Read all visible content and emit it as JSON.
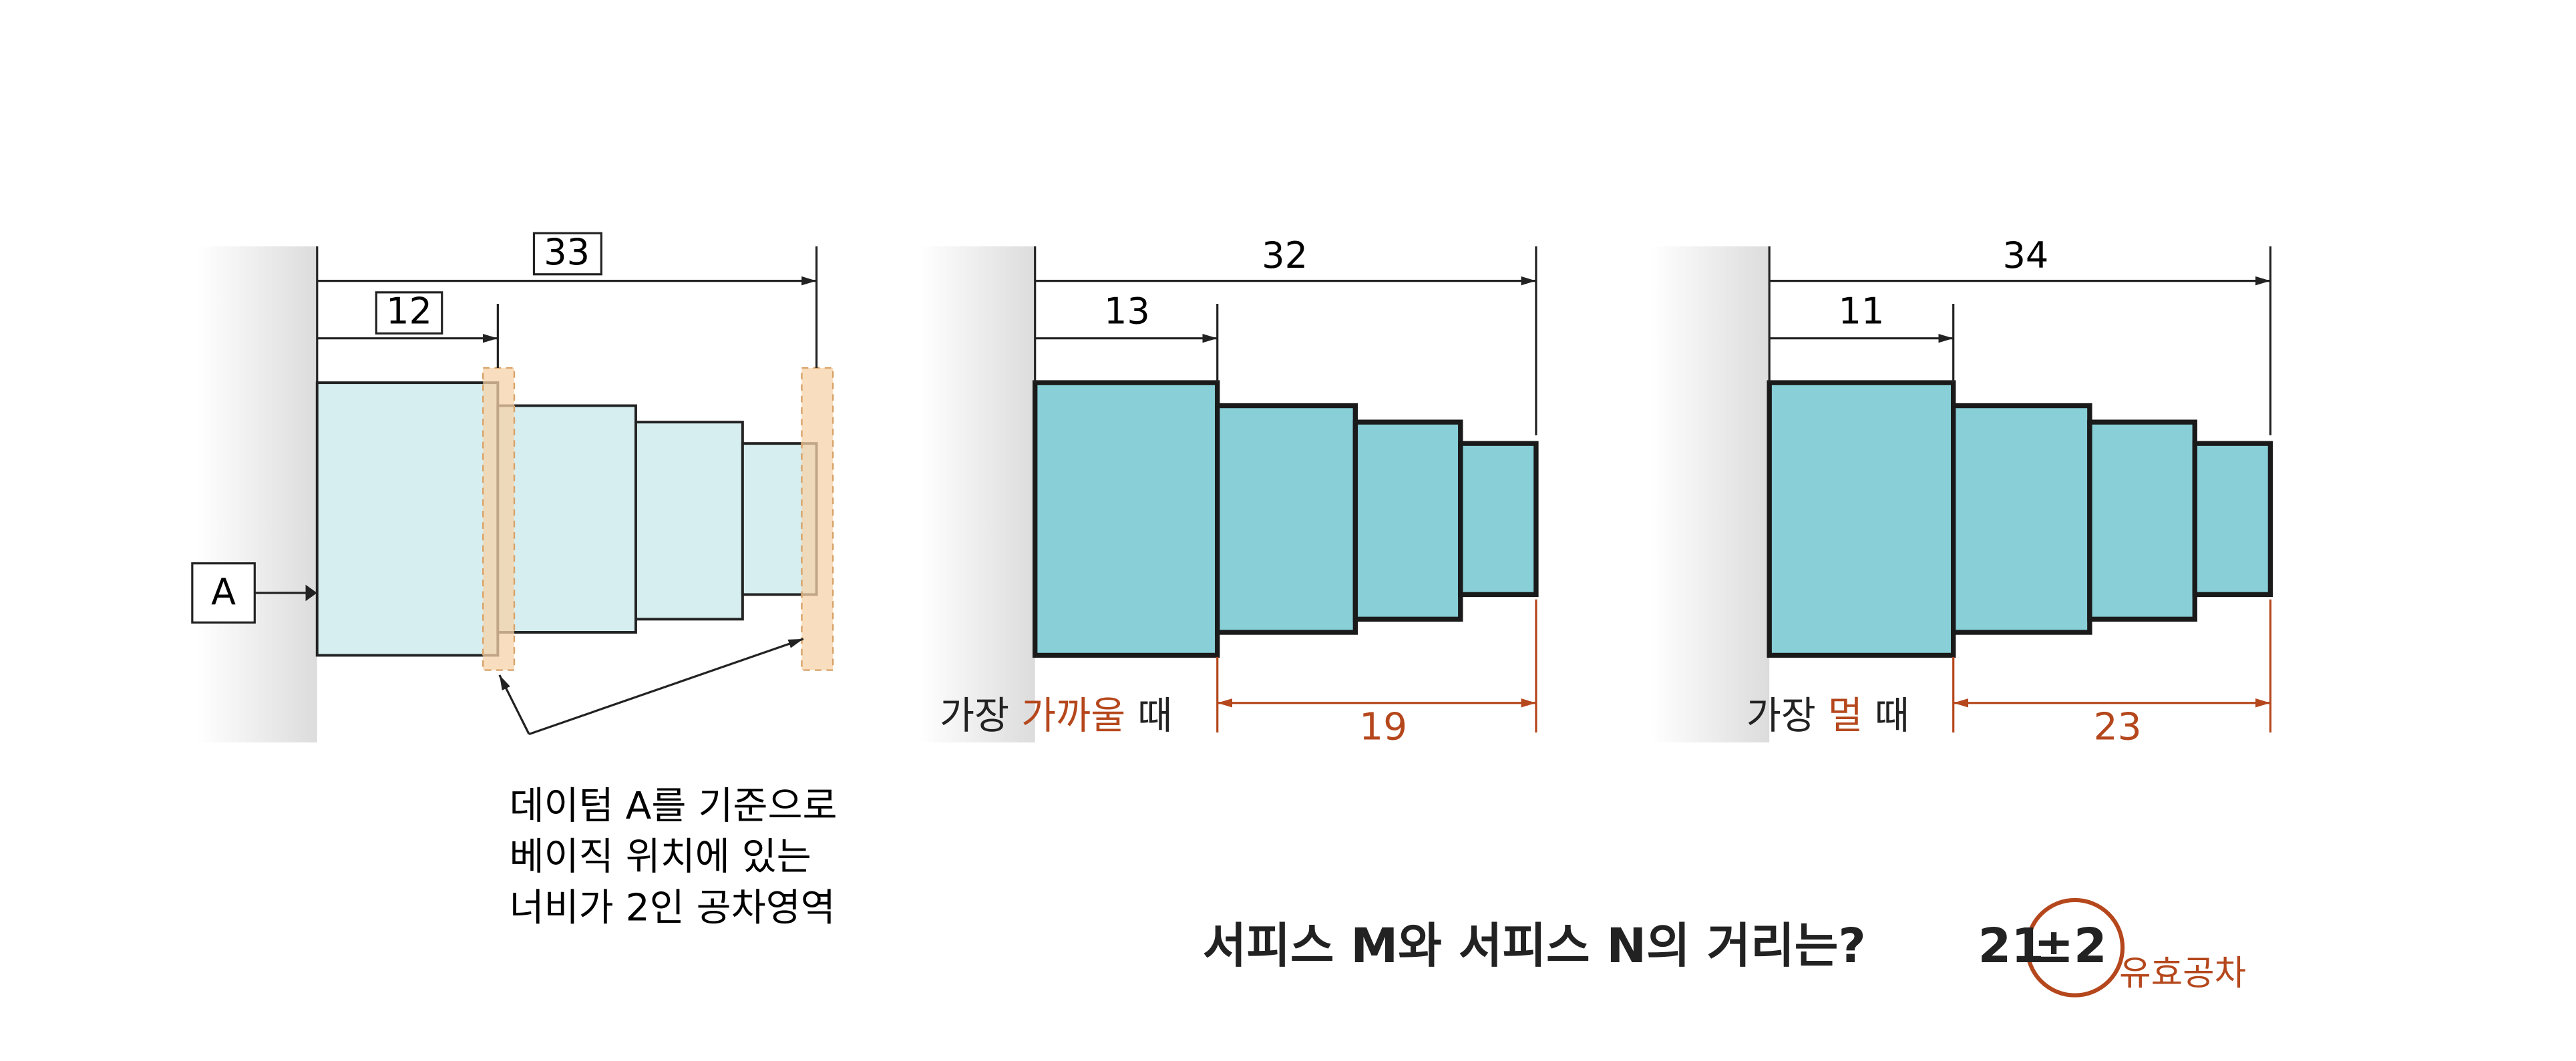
{
  "panels": [
    {
      "outer_dim": "33",
      "inner_dim": "12",
      "datum": "A",
      "note": [
        "데이텀 A를 기준으로",
        "베이직 위치에 있는",
        "너비가 2인 공차영역"
      ]
    },
    {
      "outer_dim": "32",
      "inner_dim": "13",
      "caption": [
        "가장 ",
        "가까울",
        " 때"
      ],
      "result": "19"
    },
    {
      "outer_dim": "34",
      "inner_dim": "11",
      "caption": [
        "가장 ",
        "멀",
        " 때"
      ],
      "result": "23"
    }
  ],
  "question": "서피스 M와 서피스 N의 거리는?",
  "answer": {
    "nominal": "21",
    "tolerance": "±2",
    "label": "유효공차"
  }
}
